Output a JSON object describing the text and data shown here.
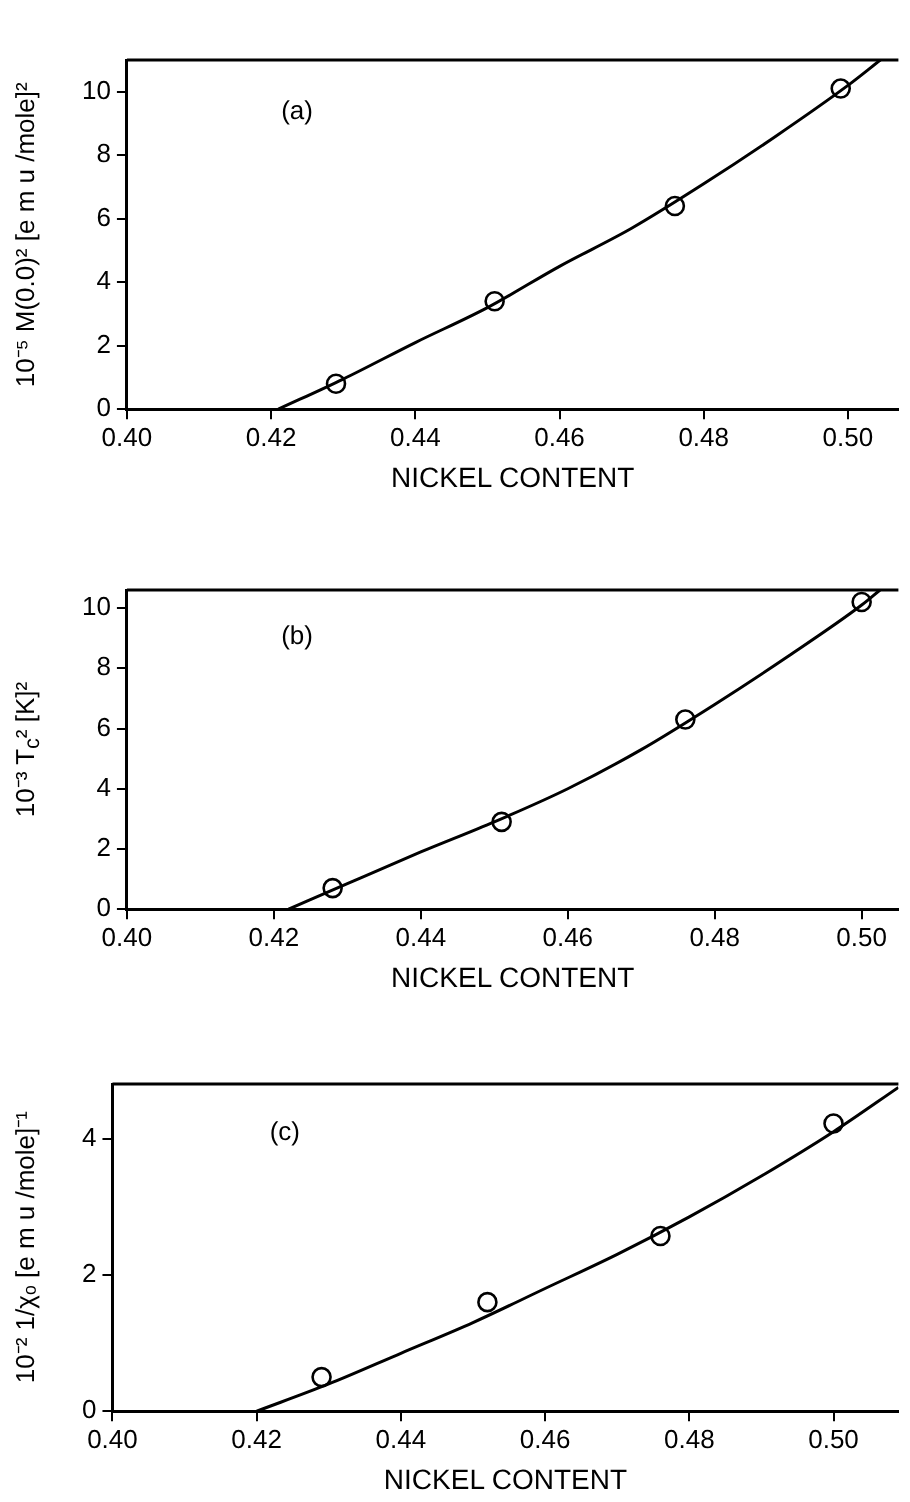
{
  "chart_data": [
    {
      "type": "scatter",
      "xlabel": "NICKEL CONTENT",
      "ylabel": "10⁻⁵ M(0.0)² [e m u /mole]²",
      "annotations": [
        "(a)"
      ],
      "xlim": [
        0.4,
        0.507
      ],
      "ylim": [
        0,
        11
      ],
      "xticks": [
        {
          "value": 0.4,
          "label": "0.40"
        },
        {
          "value": 0.42,
          "label": "0.42"
        },
        {
          "value": 0.44,
          "label": "0.44"
        },
        {
          "value": 0.46,
          "label": "0.46"
        },
        {
          "value": 0.48,
          "label": "0.48"
        },
        {
          "value": 0.5,
          "label": "0.50"
        }
      ],
      "yticks": [
        0,
        2,
        4,
        6,
        8,
        10
      ],
      "grid": false,
      "legend": false,
      "series": [
        {
          "color": "#000000",
          "marker": "circle",
          "x": [
            0.429,
            0.451,
            0.476,
            0.499
          ],
          "values": [
            0.8,
            3.4,
            6.4,
            10.1
          ]
        },
        {
          "type": "line",
          "color": "#000000",
          "marker": "none",
          "line_style": "solid",
          "x": [
            0.421,
            0.43,
            0.44,
            0.45,
            0.46,
            0.47,
            0.48,
            0.49,
            0.5,
            0.5045
          ],
          "values": [
            0,
            0.95,
            2.1,
            3.2,
            4.5,
            5.7,
            7.1,
            8.6,
            10.2,
            11
          ]
        }
      ]
    },
    {
      "type": "scatter",
      "xlabel": "NICKEL CONTENT",
      "ylabel": "10⁻³ T$_{c}$² [K]²",
      "annotations": [
        "(b)"
      ],
      "xlim": [
        0.4,
        0.505
      ],
      "ylim": [
        0,
        10.6
      ],
      "xticks": [
        {
          "value": 0.4,
          "label": "0.40"
        },
        {
          "value": 0.42,
          "label": "0.42"
        },
        {
          "value": 0.44,
          "label": "0.44"
        },
        {
          "value": 0.46,
          "label": "0.46"
        },
        {
          "value": 0.48,
          "label": "0.48"
        },
        {
          "value": 0.5,
          "label": "0.50"
        }
      ],
      "yticks": [
        0,
        2,
        4,
        6,
        8,
        10
      ],
      "grid": false,
      "legend": false,
      "series": [
        {
          "color": "#000000",
          "marker": "circle",
          "x": [
            0.428,
            0.451,
            0.476,
            0.5
          ],
          "values": [
            0.7,
            2.9,
            6.3,
            10.2
          ]
        },
        {
          "type": "line",
          "color": "#000000",
          "marker": "none",
          "line_style": "solid",
          "x": [
            0.422,
            0.43,
            0.44,
            0.45,
            0.46,
            0.47,
            0.48,
            0.49,
            0.5,
            0.5025
          ],
          "values": [
            0,
            0.85,
            1.9,
            2.9,
            4.0,
            5.3,
            6.8,
            8.4,
            10.1,
            10.6
          ]
        }
      ]
    },
    {
      "type": "scatter",
      "xlabel": "NICKEL CONTENT",
      "ylabel": "10⁻² 1/χₒ [e m u /mole]⁻¹",
      "annotations": [
        "(c)"
      ],
      "xlim": [
        0.4,
        0.509
      ],
      "ylim": [
        0,
        4.8
      ],
      "xticks": [
        {
          "value": 0.4,
          "label": "0.40"
        },
        {
          "value": 0.42,
          "label": "0.42"
        },
        {
          "value": 0.44,
          "label": "0.44"
        },
        {
          "value": 0.46,
          "label": "0.46"
        },
        {
          "value": 0.48,
          "label": "0.48"
        },
        {
          "value": 0.5,
          "label": "0.50"
        }
      ],
      "yticks": [
        0,
        2,
        4
      ],
      "grid": false,
      "legend": false,
      "series": [
        {
          "color": "#000000",
          "marker": "circle",
          "x": [
            0.429,
            0.452,
            0.476,
            0.5
          ],
          "values": [
            0.5,
            1.6,
            2.57,
            4.22
          ]
        },
        {
          "type": "line",
          "color": "#000000",
          "marker": "none",
          "line_style": "solid",
          "x": [
            0.42,
            0.43,
            0.44,
            0.45,
            0.46,
            0.47,
            0.48,
            0.49,
            0.5,
            0.509
          ],
          "values": [
            0,
            0.4,
            0.85,
            1.3,
            1.8,
            2.3,
            2.85,
            3.45,
            4.1,
            4.75
          ]
        }
      ]
    }
  ]
}
